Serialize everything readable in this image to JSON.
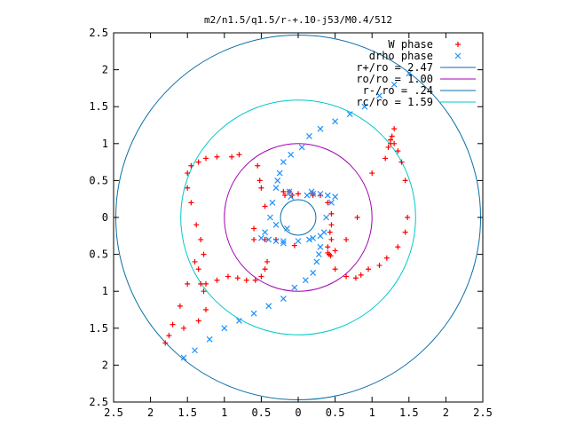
{
  "chart_data": {
    "type": "scatter",
    "title": "m2/n1.5/q1.5/r-+.10-j53/M0.4/512",
    "xlabel": "",
    "ylabel": "",
    "xlim": [
      -2.5,
      2.5
    ],
    "ylim": [
      -2.5,
      2.5
    ],
    "x_tick_labels": [
      "2.5",
      "2",
      "1.5",
      "1",
      "0.5",
      "0",
      "0.5",
      "1",
      "1.5",
      "2",
      "2.5"
    ],
    "y_tick_labels": [
      "2.5",
      "2",
      "1.5",
      "1",
      "0.5",
      "0",
      "0.5",
      "1",
      "1.5",
      "2",
      "2.5"
    ],
    "grid": false,
    "legend_position": "top-right",
    "colors": {
      "w_phase": "#ff0000",
      "drho_phase": "#1e90ff",
      "r_plus": "#0a6fa6",
      "r_o": "#a000b0",
      "r_minus": "#0a6fa6",
      "r_c": "#00c8c8"
    },
    "legend": [
      {
        "label": "W phase",
        "marker": "+",
        "color": "#ff0000"
      },
      {
        "label": "drho phase",
        "marker": "x",
        "color": "#1e90ff"
      },
      {
        "label": "r+/ro = 2.47",
        "marker": "line",
        "color": "#0a6fa6"
      },
      {
        "label": "ro/ro = 1.00",
        "marker": "line",
        "color": "#a000b0"
      },
      {
        "label": "r-/ro = .24",
        "marker": "line",
        "color": "#0a6fa6"
      },
      {
        "label": "rc/ro = 1.59",
        "marker": "line",
        "color": "#00c8c8"
      }
    ],
    "circles": [
      {
        "name": "r+/ro",
        "radius": 2.47,
        "color": "#0a6fa6"
      },
      {
        "name": "ro/ro",
        "radius": 1.0,
        "color": "#a000b0"
      },
      {
        "name": "r-/ro",
        "radius": 0.24,
        "color": "#0a6fa6"
      },
      {
        "name": "rc/ro",
        "radius": 1.59,
        "color": "#00c8c8"
      }
    ],
    "series": [
      {
        "name": "W phase",
        "marker": "+",
        "color": "#ff0000",
        "x": [
          1.3,
          1.27,
          1.25,
          1.22,
          1.18,
          1.0,
          0.8,
          0.65,
          0.5,
          0.44,
          0.4,
          -0.12,
          -0.18,
          -0.2,
          1.25,
          1.3,
          1.35,
          1.4,
          1.45,
          1.48,
          1.45,
          1.35,
          1.2,
          1.1,
          0.95,
          0.85,
          0.78,
          0.65,
          0.5,
          0.42,
          0.4,
          -1.25,
          -1.28,
          -1.32,
          -1.35,
          -1.4,
          -1.5,
          -1.6,
          -1.7,
          -1.8,
          -1.75,
          -1.55,
          -1.35,
          -1.1,
          -0.95,
          -0.82,
          -0.7,
          -0.58,
          -0.5,
          -0.45,
          -0.42,
          -1.25,
          -1.28,
          -1.32,
          -1.38,
          -1.45,
          -1.5,
          -1.5,
          -1.45,
          -1.35,
          -1.25,
          -1.1,
          -0.9,
          -0.8,
          -0.55,
          -0.52,
          -0.5,
          -0.6,
          -0.6,
          -0.05,
          0.2,
          0.4,
          0.45,
          0.45,
          0.43,
          0.45,
          -0.45,
          -0.45,
          -0.3,
          -0.08,
          0.0,
          0.2,
          0.3
        ],
        "y": [
          1.2,
          1.1,
          1.0,
          0.95,
          0.8,
          0.6,
          0.0,
          -0.3,
          -0.45,
          -0.52,
          -0.48,
          0.35,
          0.3,
          0.35,
          1.05,
          1.0,
          0.9,
          0.75,
          0.5,
          0.0,
          -0.2,
          -0.4,
          -0.55,
          -0.65,
          -0.7,
          -0.78,
          -0.82,
          -0.8,
          -0.7,
          -0.5,
          -0.4,
          -1.25,
          -1.0,
          -0.9,
          -0.7,
          -0.6,
          -0.9,
          -1.2,
          -1.45,
          -1.7,
          -1.6,
          -1.5,
          -1.4,
          -0.85,
          -0.8,
          -0.82,
          -0.85,
          -0.85,
          -0.8,
          -0.7,
          -0.6,
          -0.9,
          -0.5,
          -0.3,
          -0.1,
          0.2,
          0.4,
          0.6,
          0.7,
          0.75,
          0.8,
          0.82,
          0.82,
          0.85,
          0.7,
          0.5,
          0.4,
          -0.3,
          -0.15,
          -0.38,
          0.3,
          0.2,
          0.05,
          -0.1,
          -0.2,
          -0.3,
          0.15,
          -0.3,
          -0.3,
          0.3,
          0.32,
          0.32,
          0.3
        ],
        "point_count_note": ""
      },
      {
        "name": "drho phase",
        "marker": "x",
        "color": "#1e90ff",
        "x": [
          1.5,
          1.3,
          1.1,
          0.9,
          0.7,
          0.5,
          0.3,
          0.15,
          0.05,
          -0.1,
          -0.2,
          -0.25,
          -0.28,
          -0.3,
          -0.35,
          -0.38,
          -0.45,
          -0.5,
          -0.4,
          -0.3,
          -0.2,
          -1.55,
          -1.4,
          -1.2,
          -1.0,
          -0.8,
          -0.6,
          -0.4,
          -0.2,
          -0.05,
          0.1,
          0.2,
          0.25,
          0.28,
          0.3,
          0.35,
          0.38,
          0.45,
          0.5,
          0.4,
          0.3,
          0.2,
          0.18,
          0.12,
          0.2,
          0.3,
          -0.12,
          -0.1,
          0.0,
          0.15,
          -0.3,
          -0.15,
          -0.2
        ],
        "y": [
          1.95,
          1.8,
          1.65,
          1.5,
          1.4,
          1.3,
          1.2,
          1.1,
          0.95,
          0.85,
          0.75,
          0.6,
          0.5,
          0.4,
          0.2,
          0.0,
          -0.2,
          -0.28,
          -0.3,
          -0.32,
          -0.32,
          -1.9,
          -1.8,
          -1.65,
          -1.5,
          -1.4,
          -1.3,
          -1.2,
          -1.1,
          -0.95,
          -0.85,
          -0.75,
          -0.6,
          -0.5,
          -0.4,
          -0.2,
          0.0,
          0.2,
          0.28,
          0.3,
          0.32,
          0.32,
          0.35,
          0.3,
          -0.28,
          -0.25,
          0.35,
          0.28,
          -0.32,
          -0.3,
          -0.1,
          -0.15,
          -0.35
        ]
      }
    ]
  }
}
